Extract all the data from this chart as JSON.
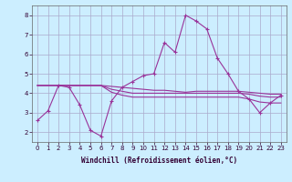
{
  "xlabel": "Windchill (Refroidissement éolien,°C)",
  "background_color": "#cceeff",
  "grid_color": "#aaaacc",
  "line_color": "#993399",
  "x_hours": [
    0,
    1,
    2,
    3,
    4,
    5,
    6,
    7,
    8,
    9,
    10,
    11,
    12,
    13,
    14,
    15,
    16,
    17,
    18,
    19,
    20,
    21,
    22,
    23
  ],
  "series1": [
    2.6,
    3.1,
    4.4,
    4.3,
    3.4,
    2.1,
    1.8,
    3.6,
    4.3,
    4.6,
    4.9,
    5.0,
    6.6,
    6.1,
    8.0,
    7.7,
    7.3,
    5.8,
    5.0,
    4.1,
    3.7,
    3.0,
    3.5,
    3.9
  ],
  "series2": [
    4.4,
    4.4,
    4.4,
    4.4,
    4.4,
    4.4,
    4.4,
    4.35,
    4.3,
    4.25,
    4.2,
    4.15,
    4.15,
    4.1,
    4.05,
    4.1,
    4.1,
    4.1,
    4.1,
    4.1,
    4.05,
    4.0,
    3.95,
    3.95
  ],
  "series3": [
    4.4,
    4.4,
    4.4,
    4.4,
    4.4,
    4.4,
    4.4,
    4.2,
    4.1,
    4.0,
    4.0,
    4.0,
    4.0,
    4.0,
    4.0,
    4.0,
    4.0,
    4.0,
    4.0,
    4.0,
    3.95,
    3.85,
    3.8,
    3.8
  ],
  "series4": [
    4.4,
    4.4,
    4.4,
    4.4,
    4.4,
    4.4,
    4.4,
    4.05,
    3.9,
    3.8,
    3.8,
    3.8,
    3.8,
    3.8,
    3.8,
    3.8,
    3.8,
    3.8,
    3.8,
    3.8,
    3.7,
    3.55,
    3.5,
    3.5
  ],
  "ylim": [
    1.5,
    8.5
  ],
  "yticks": [
    2,
    3,
    4,
    5,
    6,
    7,
    8
  ],
  "xticks": [
    0,
    1,
    2,
    3,
    4,
    5,
    6,
    7,
    8,
    9,
    10,
    11,
    12,
    13,
    14,
    15,
    16,
    17,
    18,
    19,
    20,
    21,
    22,
    23
  ],
  "tick_fontsize": 5,
  "xlabel_fontsize": 5.5
}
